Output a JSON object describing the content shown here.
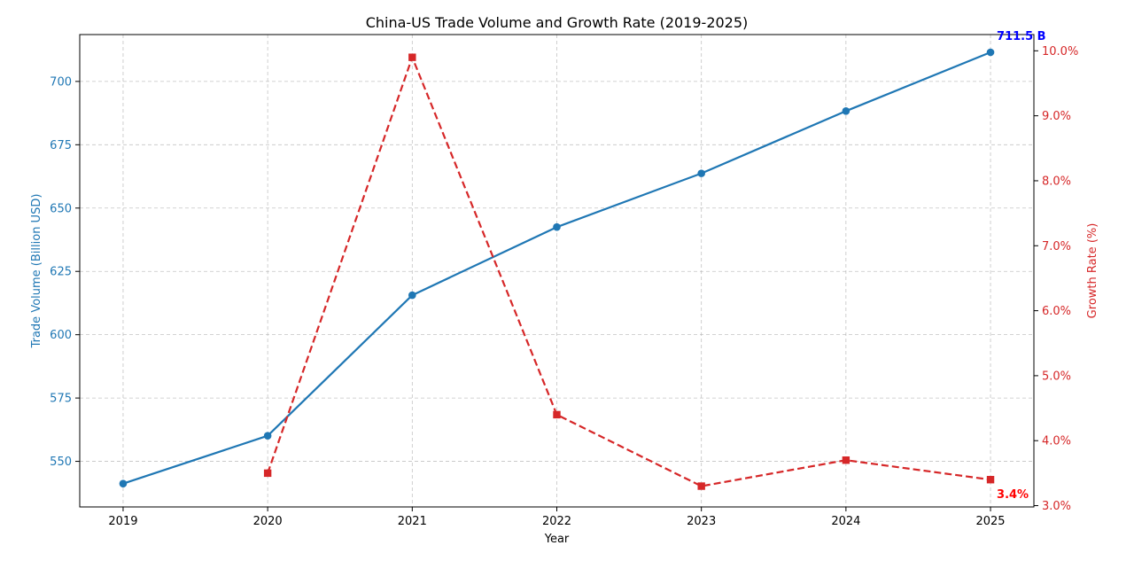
{
  "chart_data": {
    "type": "line",
    "title": "China-US Trade Volume and Growth Rate (2019-2025)",
    "xlabel": "Year",
    "ylabel_left": "Trade Volume (Billion USD)",
    "ylabel_right": "Growth Rate (%)",
    "x": [
      "2019",
      "2020",
      "2021",
      "2022",
      "2023",
      "2024",
      "2025"
    ],
    "xlim": [
      2018.7,
      2025.3
    ],
    "ylim_left": [
      532,
      718.5
    ],
    "ylim_right": [
      2.98,
      10.25
    ],
    "left_ticks": [
      550,
      575,
      600,
      625,
      650,
      675,
      700
    ],
    "right_ticks": [
      3.0,
      4.0,
      5.0,
      6.0,
      7.0,
      8.0,
      9.0,
      10.0
    ],
    "right_tick_labels": [
      "3.0%",
      "4.0%",
      "5.0%",
      "6.0%",
      "7.0%",
      "8.0%",
      "9.0%",
      "10.0%"
    ],
    "grid": true,
    "series": [
      {
        "axis": "left",
        "values": [
          541.2,
          560.1,
          615.6,
          642.5,
          663.7,
          688.3,
          711.5
        ],
        "color": "#1f77b4",
        "line_style": "solid",
        "marker": "circle"
      },
      {
        "axis": "right",
        "x": [
          "2020",
          "2021",
          "2022",
          "2023",
          "2024",
          "2025"
        ],
        "values": [
          3.5,
          9.9,
          4.4,
          3.3,
          3.7,
          3.4
        ],
        "color": "#d62728",
        "line_style": "dashed",
        "marker": "square"
      }
    ],
    "annotations": [
      {
        "text": "711.5 B",
        "x": "2025",
        "axis": "left",
        "value": 711.5,
        "color": "#0000ff"
      },
      {
        "text": "3.4%",
        "x": "2025",
        "axis": "right",
        "value": 3.4,
        "color": "#ff0000"
      }
    ]
  }
}
